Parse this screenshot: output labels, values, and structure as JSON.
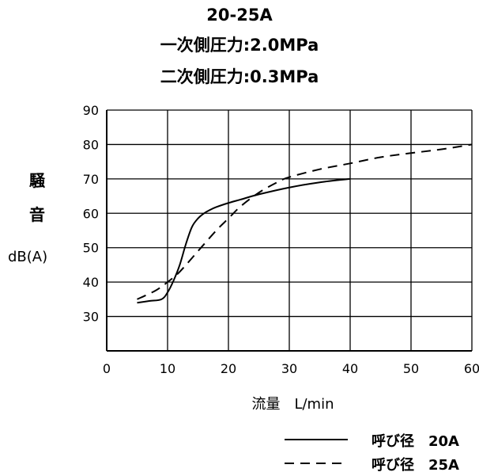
{
  "title_lines": [
    "20-25A",
    "一次側圧力:2.0MPa",
    "二次側圧力:0.3MPa"
  ],
  "ylabel": [
    "騒",
    "音"
  ],
  "yunit": "dB(A)",
  "xlabel": "流量　L/min",
  "chart_data": {
    "type": "line",
    "xlim": [
      0,
      60
    ],
    "ylim": [
      20,
      90
    ],
    "xticks": [
      0,
      10,
      20,
      30,
      40,
      50,
      60
    ],
    "yticks": [
      30,
      40,
      50,
      60,
      70,
      80,
      90
    ],
    "grid": true,
    "series": [
      {
        "name": "呼び径　20A",
        "style": "solid",
        "x": [
          5,
          7,
          9,
          10,
          11,
          12,
          13,
          14,
          15,
          16,
          17,
          18,
          20,
          22,
          25,
          30,
          35,
          40
        ],
        "y": [
          34,
          34.5,
          35,
          37,
          40.5,
          45,
          51,
          56,
          58.5,
          60,
          61,
          61.8,
          63,
          64,
          65.5,
          67.5,
          69,
          70
        ]
      },
      {
        "name": "呼び径　25A",
        "style": "dashed",
        "x": [
          5,
          8,
          10,
          12,
          15,
          18,
          20,
          22,
          25,
          28,
          30,
          35,
          40,
          45,
          50,
          55,
          60
        ],
        "y": [
          35,
          37.5,
          40,
          43,
          49,
          55,
          58.5,
          62,
          66,
          69,
          70.5,
          72.8,
          74.5,
          76.3,
          77.5,
          78.6,
          80
        ]
      }
    ],
    "legend_placement": "bottom-right"
  }
}
